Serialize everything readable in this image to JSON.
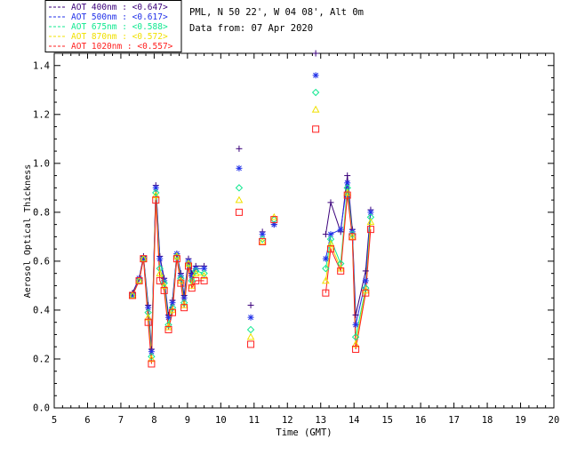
{
  "header": {
    "location": "PML, N 50 22', W 04 08', Alt 0m",
    "date": "Data from: 07 Apr 2020"
  },
  "chart_data": {
    "type": "line",
    "title": "",
    "xlabel": "Time (GMT)",
    "ylabel": "Aerosol Optical Thickness",
    "xlim": [
      5,
      20
    ],
    "ylim": [
      0,
      1.45
    ],
    "xticks": [
      "5",
      "6",
      "7",
      "8",
      "9",
      "10",
      "11",
      "12",
      "13",
      "14",
      "15",
      "16",
      "17",
      "18",
      "19",
      "20"
    ],
    "yticks": [
      "0.0",
      "0.2",
      "0.4",
      "0.6",
      "0.8",
      "1.0",
      "1.2",
      "1.4"
    ],
    "grid": false,
    "legend_position": "top-left",
    "x": [
      7.35,
      7.55,
      7.68,
      7.82,
      7.92,
      8.05,
      8.17,
      8.3,
      8.43,
      8.55,
      8.68,
      8.8,
      8.9,
      9.03,
      9.13,
      9.25,
      9.5,
      10.55,
      10.9,
      11.25,
      11.6,
      12.85,
      13.15,
      13.3,
      13.6,
      13.8,
      13.95,
      14.05,
      14.35,
      14.5
    ],
    "series": [
      {
        "name": "AOT  400nm : <0.647>",
        "marker": "plus",
        "color": "#3a007a",
        "values": [
          0.47,
          0.53,
          0.62,
          0.42,
          0.24,
          0.91,
          0.62,
          0.53,
          0.38,
          0.44,
          0.63,
          0.55,
          0.46,
          0.61,
          0.55,
          0.58,
          0.58,
          1.06,
          0.42,
          0.72,
          0.75,
          1.45,
          0.71,
          0.84,
          0.72,
          0.95,
          0.73,
          0.38,
          0.56,
          0.81
        ]
      },
      {
        "name": "AOT  500nm : <0.617>",
        "marker": "star",
        "color": "#2030e8",
        "values": [
          0.46,
          0.53,
          0.61,
          0.41,
          0.23,
          0.9,
          0.61,
          0.52,
          0.37,
          0.43,
          0.63,
          0.54,
          0.45,
          0.6,
          0.54,
          0.57,
          0.57,
          0.98,
          0.37,
          0.71,
          0.75,
          1.36,
          0.61,
          0.71,
          0.73,
          0.92,
          0.72,
          0.34,
          0.52,
          0.8
        ]
      },
      {
        "name": "AOT  675nm : <0.588>",
        "marker": "diamond",
        "color": "#10e890",
        "values": [
          0.46,
          0.52,
          0.61,
          0.39,
          0.21,
          0.88,
          0.57,
          0.51,
          0.34,
          0.41,
          0.62,
          0.53,
          0.43,
          0.59,
          0.52,
          0.56,
          0.55,
          0.9,
          0.32,
          0.69,
          0.77,
          1.29,
          0.57,
          0.69,
          0.59,
          0.9,
          0.71,
          0.29,
          0.49,
          0.78
        ]
      },
      {
        "name": "AOT  870nm : <0.572>",
        "marker": "triangle",
        "color": "#f0e000",
        "values": [
          0.46,
          0.52,
          0.61,
          0.37,
          0.2,
          0.87,
          0.55,
          0.5,
          0.33,
          0.4,
          0.62,
          0.52,
          0.42,
          0.59,
          0.5,
          0.55,
          0.54,
          0.85,
          0.29,
          0.68,
          0.78,
          1.22,
          0.52,
          0.67,
          0.57,
          0.88,
          0.7,
          0.26,
          0.48,
          0.76
        ]
      },
      {
        "name": "AOT 1020nm : <0.557>",
        "marker": "square",
        "color": "#ff2020",
        "values": [
          0.46,
          0.52,
          0.61,
          0.35,
          0.18,
          0.85,
          0.52,
          0.48,
          0.32,
          0.39,
          0.61,
          0.51,
          0.41,
          0.58,
          0.49,
          0.52,
          0.52,
          0.8,
          0.26,
          0.68,
          0.77,
          1.14,
          0.47,
          0.65,
          0.56,
          0.87,
          0.7,
          0.24,
          0.47,
          0.73
        ]
      }
    ]
  }
}
